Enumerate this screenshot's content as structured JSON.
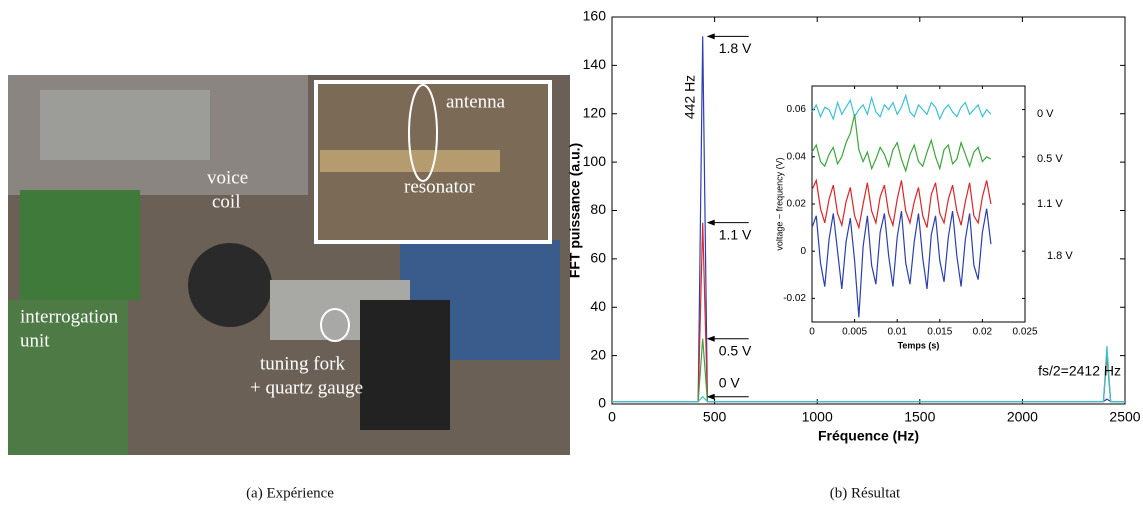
{
  "figure": {
    "photo": {
      "labels": [
        "antenna",
        "resonator",
        "voice",
        "coil",
        "interrogation",
        "unit",
        "tuning fork",
        "+ quartz gauge"
      ]
    },
    "captions": [
      "(a) Expérience",
      "(b) Résultat"
    ]
  },
  "chart_data": [
    {
      "type": "line",
      "xlabel": "Fréquence (Hz)",
      "ylabel": "FFT puissance (a.u.)",
      "xlim": [
        0,
        2500
      ],
      "xticks": [
        0,
        500,
        1000,
        1500,
        2000,
        2500
      ],
      "ylim": [
        0,
        160
      ],
      "yticks": [
        0,
        20,
        40,
        60,
        80,
        100,
        120,
        140,
        160
      ],
      "x": [
        0,
        420,
        442,
        465,
        2395,
        2412,
        2430,
        2500
      ],
      "series": [
        {
          "name": "1.8 V",
          "color": "#2b3fb0",
          "values": [
            1,
            1,
            152,
            1,
            1,
            2,
            1,
            1
          ]
        },
        {
          "name": "1.1 V",
          "color": "#d8262a",
          "values": [
            1,
            1,
            75,
            1,
            1,
            20,
            1,
            1
          ]
        },
        {
          "name": "0.5 V",
          "color": "#3ca63c",
          "values": [
            1,
            1,
            27,
            1,
            1,
            22,
            1,
            1
          ]
        },
        {
          "name": "0 V",
          "color": "#3fc1d4",
          "values": [
            1,
            1,
            3,
            1,
            1,
            24,
            1,
            1
          ]
        }
      ],
      "annotations": [
        "442 Hz",
        "fs/2=2412 Hz"
      ]
    },
    {
      "type": "line",
      "xlabel": "Temps (s)",
      "ylabel": "voltage ~ frequency (V)",
      "xlim": [
        0,
        0.025
      ],
      "xticks": [
        0,
        0.005,
        0.01,
        0.015,
        0.02,
        0.025
      ],
      "ylim": [
        -0.03,
        0.07
      ],
      "yticks": [
        -0.02,
        0,
        0.02,
        0.04,
        0.06
      ],
      "x": [
        0,
        0.0005,
        0.001,
        0.0015,
        0.002,
        0.0025,
        0.003,
        0.0035,
        0.004,
        0.0045,
        0.005,
        0.0055,
        0.006,
        0.0065,
        0.007,
        0.0075,
        0.008,
        0.0085,
        0.009,
        0.0095,
        0.01,
        0.0105,
        0.011,
        0.0115,
        0.012,
        0.0125,
        0.013,
        0.0135,
        0.014,
        0.0145,
        0.015,
        0.0155,
        0.016,
        0.0165,
        0.017,
        0.0175,
        0.018,
        0.0185,
        0.019,
        0.0195,
        0.02,
        0.0205,
        0.021
      ],
      "series": [
        {
          "name": "0 V",
          "color": "#3fc1d4",
          "values": [
            0.059,
            0.062,
            0.057,
            0.061,
            0.06,
            0.056,
            0.063,
            0.058,
            0.061,
            0.064,
            0.057,
            0.06,
            0.062,
            0.058,
            0.065,
            0.059,
            0.057,
            0.062,
            0.06,
            0.063,
            0.058,
            0.061,
            0.066,
            0.059,
            0.057,
            0.062,
            0.06,
            0.058,
            0.063,
            0.061,
            0.056,
            0.06,
            0.062,
            0.059,
            0.057,
            0.061,
            0.063,
            0.058,
            0.06,
            0.062,
            0.057,
            0.06,
            0.058
          ]
        },
        {
          "name": "0.5 V",
          "color": "#3ca63c",
          "values": [
            0.042,
            0.045,
            0.038,
            0.036,
            0.041,
            0.044,
            0.037,
            0.04,
            0.046,
            0.05,
            0.058,
            0.043,
            0.038,
            0.042,
            0.035,
            0.039,
            0.044,
            0.041,
            0.036,
            0.043,
            0.046,
            0.039,
            0.034,
            0.041,
            0.045,
            0.038,
            0.036,
            0.042,
            0.047,
            0.04,
            0.035,
            0.043,
            0.045,
            0.037,
            0.039,
            0.046,
            0.041,
            0.036,
            0.042,
            0.044,
            0.038,
            0.04,
            0.039
          ]
        },
        {
          "name": "1.1 V",
          "color": "#d8262a",
          "values": [
            0.026,
            0.03,
            0.018,
            0.012,
            0.022,
            0.028,
            0.016,
            0.011,
            0.021,
            0.027,
            0.015,
            0.01,
            0.02,
            0.029,
            0.017,
            0.012,
            0.023,
            0.028,
            0.016,
            0.011,
            0.022,
            0.03,
            0.017,
            0.012,
            0.021,
            0.027,
            0.015,
            0.01,
            0.024,
            0.029,
            0.016,
            0.012,
            0.022,
            0.028,
            0.017,
            0.011,
            0.021,
            0.029,
            0.015,
            0.012,
            0.023,
            0.03,
            0.02
          ]
        },
        {
          "name": "1.8 V",
          "color": "#2b3fb0",
          "values": [
            0.01,
            0.015,
            -0.005,
            -0.015,
            0.005,
            0.016,
            0.0,
            -0.016,
            0.004,
            0.014,
            -0.004,
            -0.028,
            0.002,
            0.015,
            -0.006,
            -0.014,
            0.008,
            0.016,
            -0.002,
            -0.015,
            0.006,
            0.017,
            -0.005,
            -0.014,
            0.004,
            0.016,
            -0.003,
            -0.016,
            0.007,
            0.015,
            -0.004,
            -0.013,
            0.006,
            0.017,
            -0.002,
            -0.015,
            0.005,
            0.016,
            -0.006,
            -0.012,
            0.008,
            0.018,
            0.003
          ]
        }
      ]
    }
  ]
}
